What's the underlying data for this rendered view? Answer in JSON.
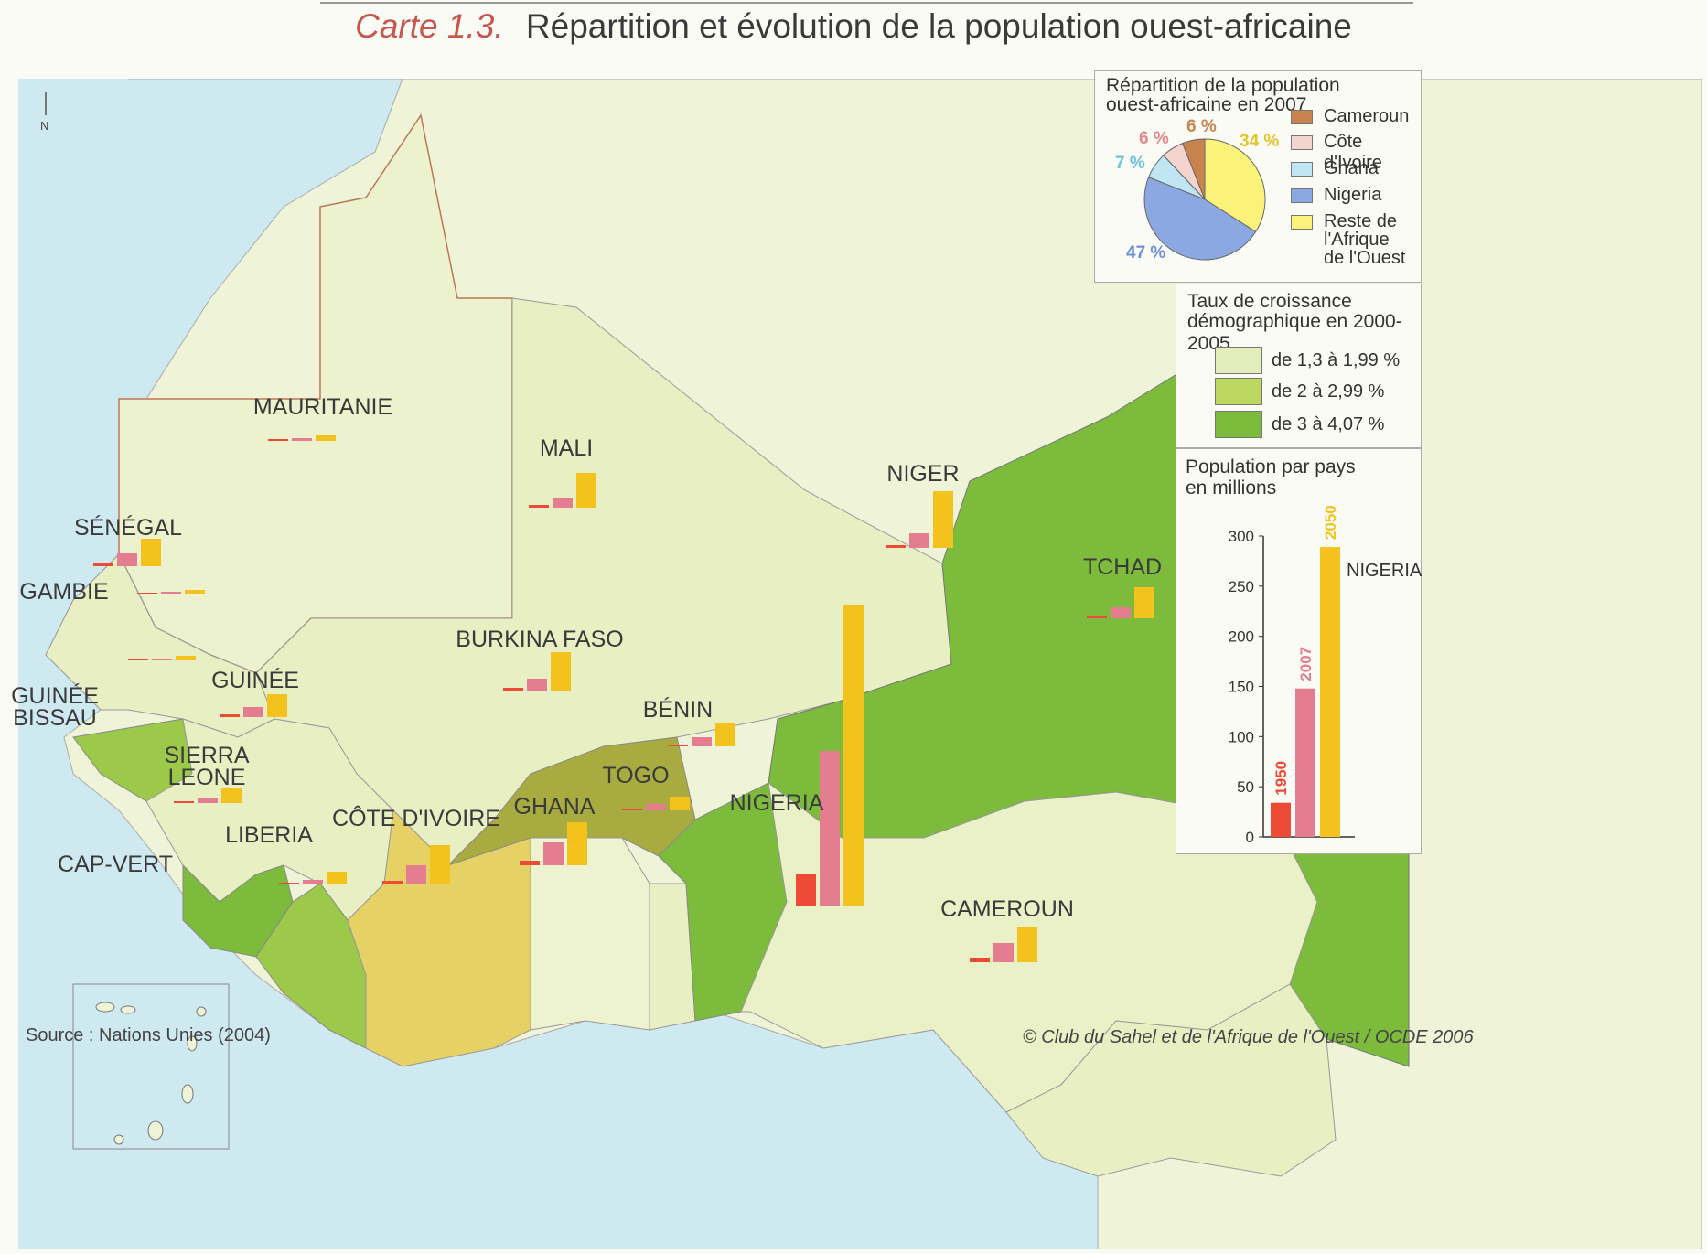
{
  "title": {
    "number": "Carte 1.3.",
    "text": "Répartition et évolution de la population ouest-africaine"
  },
  "countries": {
    "mauritanie": "MAURITANIE",
    "mali": "MALI",
    "niger": "NIGER",
    "senegal": "SÉNÉGAL",
    "gambie": "GAMBIE",
    "guinee_bissau_1": "GUINÉE",
    "guinee_bissau_2": "BISSAU",
    "guinee": "GUINÉE",
    "sierra_1": "SIERRA",
    "sierra_2": "LEONE",
    "liberia": "LIBERIA",
    "cote_ivoire": "CÔTE D'IVOIRE",
    "burkina": "BURKINA FASO",
    "ghana": "GHANA",
    "togo": "TOGO",
    "benin": "BÉNIN",
    "nigeria": "NIGERIA",
    "tchad": "TCHAD",
    "cameroun": "CAMEROUN",
    "cap_vert": "CAP-VERT"
  },
  "north": "N",
  "pie_panel": {
    "title_1": "Répartition de la population",
    "title_2": "ouest-africaine en 2007",
    "slices": [
      {
        "label": "Cameroun",
        "pct": "6 %",
        "value": 6,
        "color": "#c8834f"
      },
      {
        "label": "Côte d'Ivoire",
        "pct": "6 %",
        "value": 6,
        "color": "#f4d4cf"
      },
      {
        "label": "Ghana",
        "pct": "7 %",
        "value": 7,
        "color": "#bfe6f2"
      },
      {
        "label": "Nigeria",
        "pct": "47 %",
        "value": 47,
        "color": "#8ba8e2"
      },
      {
        "label": "Reste de l'Afrique de l'Ouest",
        "pct": "34 %",
        "value": 34,
        "color": "#fbf27a"
      }
    ],
    "legend": [
      "Cameroun",
      "Côte d'Ivoire",
      "Ghana",
      "Nigeria",
      "Reste de",
      "l'Afrique",
      "de l'Ouest"
    ]
  },
  "growth_panel": {
    "title_1": "Taux de croissance",
    "title_2": "démographique en 2000-2005",
    "items": [
      {
        "label": "de 1,3 à 1,99 %",
        "color": "#e3edbc"
      },
      {
        "label": "de 2 à 2,99 %",
        "color": "#bcd860"
      },
      {
        "label": "de 3 à 4,07 %",
        "color": "#7cbb3b"
      }
    ]
  },
  "pop_panel": {
    "title_1": "Population par pays",
    "title_2": "en millions",
    "ticks": [
      "300",
      "250",
      "200",
      "150",
      "100",
      "50",
      "0"
    ],
    "years": [
      "1950",
      "2007",
      "2050"
    ],
    "country": "NIGERIA"
  },
  "chart_data": {
    "type": "bar",
    "title": "Population par pays en millions",
    "categories": [
      "1950",
      "2007",
      "2050"
    ],
    "series": [
      {
        "name": "NIGERIA",
        "values": [
          34,
          148,
          289
        ]
      }
    ],
    "ylim": [
      0,
      300
    ],
    "colors": [
      "#ee4a38",
      "#e47d8f",
      "#f4c21c"
    ]
  },
  "source": "Source : Nations Unies (2004)",
  "copyright": "© Club du Sahel et de l'Afrique de l'Ouest / OCDE 2006"
}
